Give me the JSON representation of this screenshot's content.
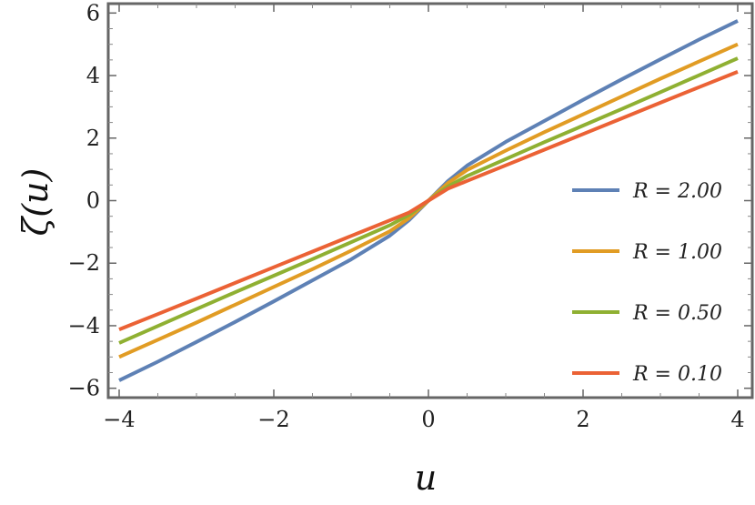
{
  "chart_data": {
    "type": "line",
    "title": "",
    "xlabel": "u",
    "ylabel": "ζ(u)",
    "xlim": [
      -4,
      4
    ],
    "ylim": [
      -6.3,
      6.3
    ],
    "xticks": [
      -4,
      -2,
      0,
      2,
      4
    ],
    "yticks": [
      -6,
      -4,
      -2,
      0,
      2,
      4,
      6
    ],
    "xtick_labels": [
      "−4",
      "−2",
      "0",
      "2",
      "4"
    ],
    "ytick_labels": [
      "−6",
      "−4",
      "−2",
      "0",
      "2",
      "4",
      "6"
    ],
    "grid": false,
    "legend_position": "right",
    "x": [
      -4,
      -3.5,
      -3,
      -2.5,
      -2,
      -1.5,
      -1,
      -0.5,
      -0.25,
      0,
      0.25,
      0.5,
      1,
      1.5,
      2,
      2.5,
      3,
      3.5,
      4
    ],
    "series": [
      {
        "name": "R = 2.00",
        "color": "#5e81b5",
        "values": [
          -5.75,
          -5.15,
          -4.52,
          -3.88,
          -3.22,
          -2.55,
          -1.88,
          -1.12,
          -0.62,
          0,
          0.62,
          1.12,
          1.88,
          2.55,
          3.22,
          3.88,
          4.52,
          5.15,
          5.75
        ]
      },
      {
        "name": "R = 1.00",
        "color": "#e19c24",
        "values": [
          -5.0,
          -4.45,
          -3.9,
          -3.33,
          -2.76,
          -2.19,
          -1.6,
          -0.98,
          -0.56,
          0,
          0.56,
          0.98,
          1.6,
          2.19,
          2.76,
          3.33,
          3.9,
          4.45,
          5.0
        ]
      },
      {
        "name": "R = 0.50",
        "color": "#8fb032",
        "values": [
          -4.55,
          -4.01,
          -3.47,
          -2.93,
          -2.4,
          -1.87,
          -1.33,
          -0.79,
          -0.45,
          0,
          0.45,
          0.79,
          1.33,
          1.87,
          2.4,
          2.93,
          3.47,
          4.01,
          4.55
        ]
      },
      {
        "name": "R = 0.10",
        "color": "#eb6235",
        "values": [
          -4.12,
          -3.63,
          -3.13,
          -2.63,
          -2.13,
          -1.63,
          -1.13,
          -0.63,
          -0.38,
          0,
          0.38,
          0.63,
          1.13,
          1.63,
          2.13,
          2.63,
          3.13,
          3.63,
          4.12
        ]
      }
    ]
  }
}
